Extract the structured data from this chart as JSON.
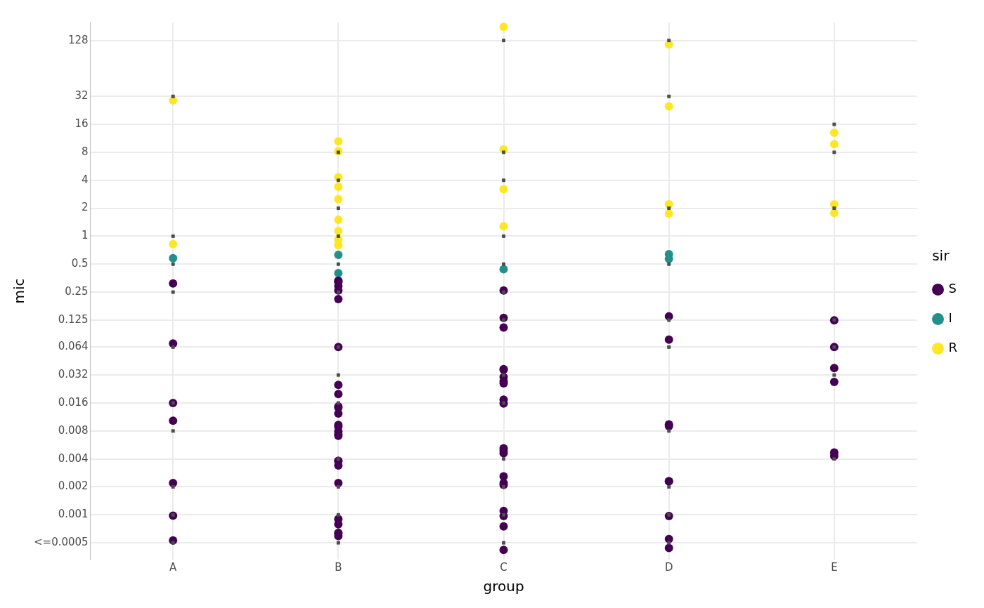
{
  "chart_data": {
    "type": "scatter",
    "xlabel": "group",
    "ylabel": "mic",
    "legend_title": "sir",
    "legend": "right",
    "grid": true,
    "marker": "circle",
    "log": true,
    "categories": [
      "A",
      "B",
      "C",
      "D",
      "E"
    ],
    "ylim": [
      0.00033,
      200
    ],
    "yticks": [
      {
        "value": 0.0005,
        "label": "<=0.0005"
      },
      0.001,
      0.002,
      0.004,
      0.008,
      0.016,
      0.032,
      0.064,
      0.125,
      0.25,
      0.5,
      1,
      2,
      4,
      8,
      16,
      32,
      128
    ],
    "series": [
      {
        "color": "#4d4d4d",
        "marker": "square",
        "x": [
          "A",
          "A",
          "A",
          "A",
          "A",
          "A",
          "A",
          "A",
          "A",
          "A",
          "B",
          "B",
          "B",
          "B",
          "B",
          "B",
          "B",
          "B",
          "B",
          "B",
          "B",
          "B",
          "B",
          "C",
          "C",
          "C",
          "C",
          "C",
          "C",
          "C",
          "C",
          "C",
          "C",
          "C",
          "C",
          "C",
          "D",
          "D",
          "D",
          "D",
          "D",
          "D",
          "D",
          "D",
          "D",
          "D",
          "E",
          "E",
          "E",
          "E",
          "E",
          "E",
          "E"
        ],
        "values": [
          32,
          1,
          0.5,
          0.25,
          0.064,
          0.016,
          0.008,
          0.002,
          0.001,
          0.0005,
          8,
          4,
          2,
          1,
          0.5,
          0.25,
          0.064,
          0.032,
          0.016,
          0.004,
          0.002,
          0.001,
          0.0005,
          128,
          8,
          4,
          1,
          0.5,
          0.25,
          0.125,
          0.032,
          0.016,
          0.004,
          0.002,
          0.001,
          0.0005,
          128,
          32,
          2,
          0.5,
          0.125,
          0.064,
          0.008,
          0.002,
          0.001,
          0.0005,
          16,
          8,
          2,
          0.125,
          0.064,
          0.032,
          0.004
        ]
      },
      {
        "name": "S",
        "color": "#440154",
        "x": [
          "A",
          "A",
          "A",
          "A",
          "A",
          "A",
          "A",
          "B",
          "B",
          "B",
          "B",
          "B",
          "B",
          "B",
          "B",
          "B",
          "B",
          "B",
          "B",
          "B",
          "B",
          "B",
          "B",
          "B",
          "B",
          "B",
          "B",
          "B",
          "B",
          "B",
          "B",
          "B",
          "B",
          "C",
          "C",
          "C",
          "C",
          "C",
          "C",
          "C",
          "C",
          "C",
          "C",
          "C",
          "C",
          "C",
          "C",
          "C",
          "C",
          "C",
          "C",
          "C",
          "C",
          "D",
          "D",
          "D",
          "D",
          "D",
          "D",
          "D",
          "D",
          "D",
          "E",
          "E",
          "E",
          "E",
          "E",
          "E"
        ],
        "values": [
          0.31,
          0.07,
          0.016,
          0.0103,
          0.0022,
          0.00098,
          0.00053,
          0.33,
          0.33,
          0.29,
          0.32,
          0.26,
          0.21,
          0.064,
          0.025,
          0.02,
          0.0147,
          0.0143,
          0.0123,
          0.0093,
          0.0089,
          0.0079,
          0.0074,
          0.0071,
          0.0038,
          0.0038,
          0.0034,
          0.0022,
          0.0009,
          0.00079,
          0.00059,
          0.00063,
          0.00064,
          0.26,
          0.132,
          0.104,
          0.0365,
          0.037,
          0.026,
          0.0275,
          0.0305,
          0.0174,
          0.0158,
          0.0052,
          0.0049,
          0.0046,
          0.0026,
          0.0021,
          0.0022,
          0.0011,
          0.00075,
          0.00097,
          0.00042,
          0.137,
          0.077,
          0.0094,
          0.009,
          0.0023,
          0.0023,
          0.00097,
          0.00055,
          0.00044,
          0.124,
          0.064,
          0.038,
          0.027,
          0.0047,
          0.0043
        ]
      },
      {
        "name": "I",
        "color": "#21908c",
        "x": [
          "A",
          "B",
          "B",
          "C",
          "D",
          "D"
        ],
        "values": [
          0.58,
          0.63,
          0.4,
          0.44,
          0.57,
          0.64
        ]
      },
      {
        "name": "R",
        "color": "#fde725",
        "x": [
          "A",
          "A",
          "B",
          "B",
          "B",
          "B",
          "B",
          "B",
          "B",
          "B",
          "B",
          "B",
          "C",
          "C",
          "C",
          "C",
          "D",
          "D",
          "D",
          "D",
          "E",
          "E",
          "E",
          "E"
        ],
        "values": [
          29,
          0.82,
          10.5,
          8.2,
          4.3,
          3.4,
          2.5,
          1.5,
          1.14,
          0.92,
          0.8,
          0.81,
          179,
          8.6,
          3.2,
          1.28,
          116,
          25,
          2.2,
          1.75,
          13,
          9.8,
          2.2,
          1.78
        ]
      }
    ]
  }
}
